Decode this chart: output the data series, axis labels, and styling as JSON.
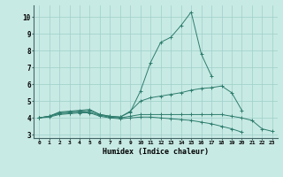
{
  "xlabel": "Humidex (Indice chaleur)",
  "bg_color": "#c8eae4",
  "line_color": "#2e7d6e",
  "grid_color": "#9ecfca",
  "xlim": [
    -0.5,
    23.5
  ],
  "ylim": [
    2.8,
    10.7
  ],
  "x": [
    0,
    1,
    2,
    3,
    4,
    5,
    6,
    7,
    8,
    9,
    10,
    11,
    12,
    13,
    14,
    15,
    16,
    17,
    18,
    19,
    20,
    21,
    22,
    23
  ],
  "line1": [
    4.0,
    4.1,
    4.35,
    4.4,
    4.45,
    4.5,
    4.2,
    4.1,
    4.05,
    4.35,
    5.6,
    7.3,
    8.5,
    8.8,
    9.5,
    10.3,
    7.8,
    6.5,
    null,
    null,
    null,
    null,
    null,
    null
  ],
  "line2": [
    4.0,
    4.1,
    4.3,
    4.35,
    4.4,
    4.45,
    4.2,
    4.1,
    4.05,
    4.4,
    5.0,
    5.2,
    5.3,
    5.4,
    5.5,
    5.65,
    5.75,
    5.8,
    5.9,
    5.5,
    4.45,
    null,
    null,
    null
  ],
  "line3": [
    4.0,
    4.1,
    4.25,
    4.3,
    4.35,
    4.35,
    4.15,
    4.05,
    4.0,
    4.1,
    4.2,
    4.2,
    4.2,
    4.2,
    4.2,
    4.2,
    4.2,
    4.2,
    4.2,
    4.1,
    4.0,
    3.85,
    3.35,
    3.2
  ],
  "line4": [
    4.0,
    4.05,
    4.2,
    4.25,
    4.3,
    4.3,
    4.1,
    4.0,
    3.95,
    4.0,
    4.05,
    4.05,
    4.0,
    3.95,
    3.9,
    3.85,
    3.75,
    3.65,
    3.5,
    3.35,
    3.15,
    null,
    null,
    null
  ],
  "yticks": [
    3,
    4,
    5,
    6,
    7,
    8,
    9,
    10
  ]
}
